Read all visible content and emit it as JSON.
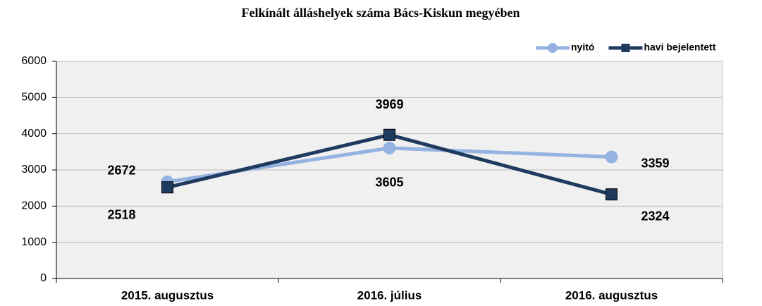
{
  "chart_data": {
    "type": "line",
    "title": "Felkínált álláshelyek száma Bács-Kiskun megyében",
    "categories": [
      "2015. augusztus",
      "2016. július",
      "2016. augusztus"
    ],
    "series": [
      {
        "name": "nyitó",
        "color": "#95b3e0",
        "values": [
          2672,
          3605,
          3359
        ]
      },
      {
        "name": "havi bejelentett",
        "color": "#1f3a5f",
        "values": [
          2518,
          3969,
          2324
        ]
      }
    ],
    "ylim": [
      0,
      6000
    ],
    "yticks": [
      0,
      1000,
      2000,
      3000,
      4000,
      5000,
      6000
    ],
    "grid": true,
    "legend": "top-right"
  }
}
